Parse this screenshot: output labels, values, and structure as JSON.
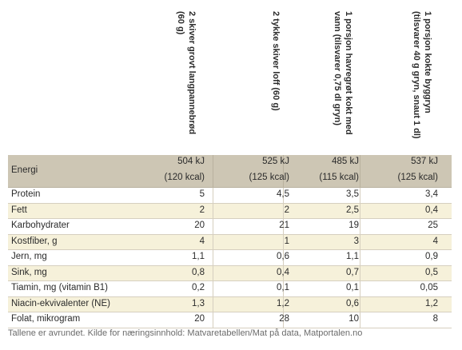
{
  "columns": [
    {
      "line1": "2 skiver grovt langpannebrød",
      "line2": "(60 g)"
    },
    {
      "line1": "2 tykke skiver loff (60 g)",
      "line2": ""
    },
    {
      "line1": "1 porsjon havregrøt kokt med",
      "line2": "vann (tilsvarer 0,75 dl gryn)"
    },
    {
      "line1": "1 porsjon kokte byggryn",
      "line2": "(tilsvarer 40 g gryn, snaut 1 dl)"
    }
  ],
  "energy": {
    "label": "Energi",
    "kj": [
      "504 kJ",
      "525 kJ",
      "485 kJ",
      "537 kJ"
    ],
    "kcal": [
      "(120 kcal)",
      "(125 kcal)",
      "(115 kcal)",
      "(125 kcal)"
    ]
  },
  "rows": [
    {
      "label": "Protein",
      "values": [
        "5",
        "4,5",
        "3,5",
        "3,4"
      ]
    },
    {
      "label": "Fett",
      "values": [
        "2",
        "2",
        "2,5",
        "0,4"
      ]
    },
    {
      "label": "Karbohydrater",
      "values": [
        "20",
        "21",
        "19",
        "25"
      ]
    },
    {
      "label": "Kostfiber, g",
      "values": [
        "4",
        "1",
        "3",
        "4"
      ]
    },
    {
      "label": "Jern, mg",
      "values": [
        "1,1",
        "0,6",
        "1,1",
        "0,9"
      ]
    },
    {
      "label": "Sink, mg",
      "values": [
        "0,8",
        "0,4",
        "0,7",
        "0,5"
      ]
    },
    {
      "label": "Tiamin, mg (vitamin B1)",
      "values": [
        "0,2",
        "0,1",
        "0,1",
        "0,05"
      ]
    },
    {
      "label": "Niacin-ekvivalenter (NE)",
      "values": [
        "1,3",
        "1,2",
        "0,6",
        "1,2"
      ]
    },
    {
      "label": "Folat, mikrogram",
      "values": [
        "20",
        "28",
        "10",
        "8"
      ]
    }
  ],
  "footnote": "Tallene er avrundet. Kilde for næringsinnhold: Matvaretabellen/Mat på data, Matportalen.no",
  "colors": {
    "energy_row": "#cdc6b4",
    "stripe": "#f6f1da",
    "rule": "#d6cfbf"
  }
}
